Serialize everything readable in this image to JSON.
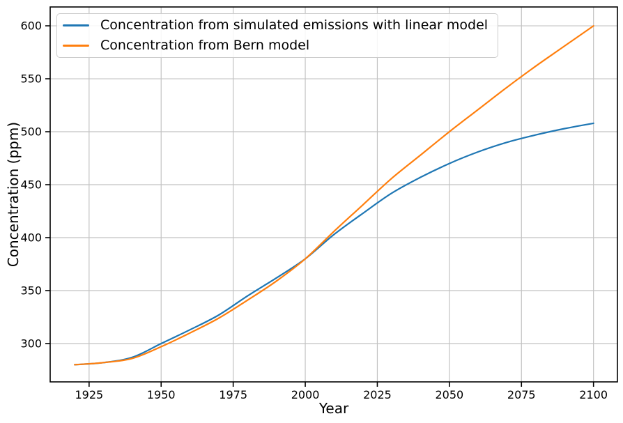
{
  "figure": {
    "background": "#ffffff"
  },
  "chart_data": {
    "type": "line",
    "title": "",
    "xlabel": "Year",
    "ylabel": "Concentration (ppm)",
    "x": [
      1920,
      1930,
      1940,
      1950,
      1960,
      1970,
      1980,
      1990,
      2000,
      2010,
      2020,
      2030,
      2040,
      2050,
      2060,
      2070,
      2080,
      2090,
      2100
    ],
    "series": [
      {
        "name": "Concentration from simulated emissions with linear model",
        "color": "#1f77b4",
        "values": [
          280,
          282,
          287,
          300,
          313,
          327,
          345,
          362,
          380,
          403,
          423,
          442,
          457,
          470,
          481,
          490,
          497,
          503,
          508
        ]
      },
      {
        "name": "Concentration from Bern model",
        "color": "#ff7f0e",
        "values": [
          280,
          282,
          286,
          297,
          310,
          324,
          341,
          359,
          380,
          406,
          431,
          456,
          478,
          500,
          521,
          542,
          562,
          581,
          600
        ]
      }
    ],
    "xticks": [
      1925,
      1950,
      1975,
      2000,
      2025,
      2050,
      2075,
      2100
    ],
    "yticks": [
      300,
      350,
      400,
      450,
      500,
      550,
      600
    ],
    "xlim": [
      1911.5,
      2108.3
    ],
    "ylim": [
      263.8,
      617.8
    ],
    "grid": true,
    "legend_position": "upper-left",
    "colors": {
      "grid": "#c2c2c2",
      "axis": "#000000",
      "tick_label": "#000000",
      "legend_border": "#cccccc",
      "legend_background": "#ffffff"
    }
  }
}
